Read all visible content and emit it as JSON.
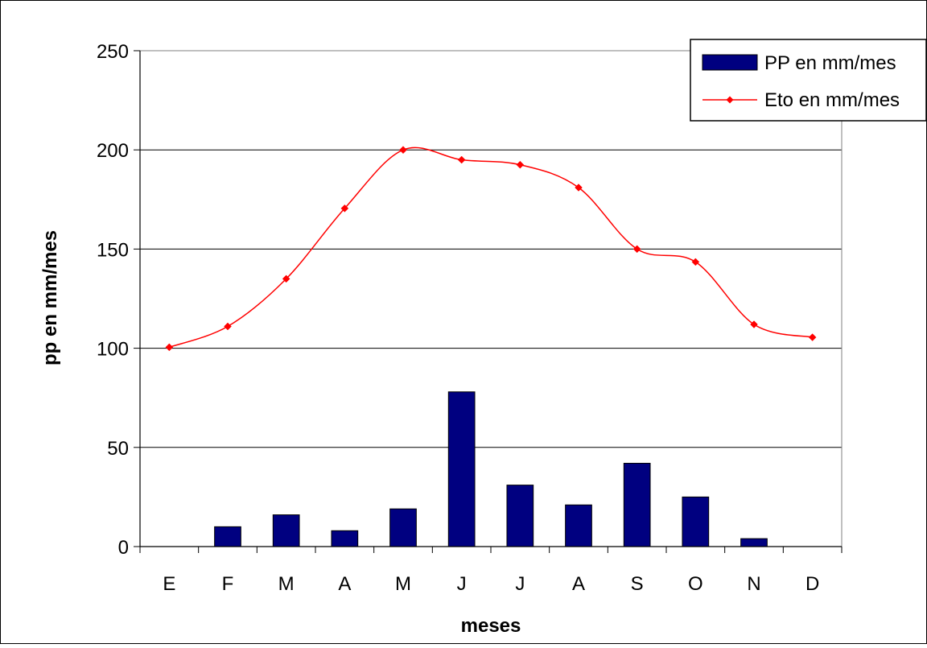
{
  "chart_data": {
    "type": "bar",
    "categories": [
      "E",
      "F",
      "M",
      "A",
      "M",
      "J",
      "J",
      "A",
      "S",
      "O",
      "N",
      "D"
    ],
    "series": [
      {
        "name": "PP en mm/mes",
        "type": "bar",
        "color": "#000080",
        "values": [
          0,
          10,
          16,
          8,
          19,
          78,
          31,
          21,
          42,
          25,
          4,
          0
        ]
      },
      {
        "name": "Eto en mm/mes",
        "type": "line",
        "smooth": true,
        "marker": "diamond",
        "color": "#ff0000",
        "values": [
          100.5,
          111,
          135,
          170.5,
          200,
          195,
          192.5,
          181,
          150,
          143.5,
          112,
          105.5
        ]
      }
    ],
    "xlabel": "meses",
    "ylabel": "pp en mm/mes",
    "ylim": [
      0,
      250
    ],
    "yticks": [
      0,
      50,
      100,
      150,
      200,
      250
    ],
    "grid": true,
    "legend": "top-right"
  }
}
